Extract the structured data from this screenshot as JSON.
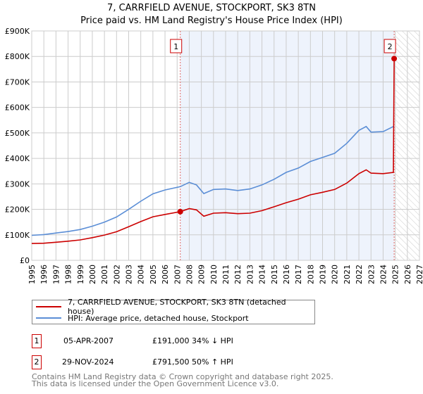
{
  "title": "7, CARRFIELD AVENUE, STOCKPORT, SK3 8TN",
  "subtitle": "Price paid vs. HM Land Registry's House Price Index (HPI)",
  "colors": {
    "property": "#cc0000",
    "hpi": "#5b8ed6",
    "shade": "#eef3fc"
  },
  "chart_data": {
    "type": "line",
    "title": "7, CARRFIELD AVENUE, STOCKPORT, SK3 8TN — Price paid vs. HPI",
    "xlim": [
      1995,
      2027
    ],
    "ylim": [
      0,
      900000
    ],
    "yticks": [
      0,
      100000,
      200000,
      300000,
      400000,
      500000,
      600000,
      700000,
      800000,
      900000
    ],
    "ytick_labels": [
      "£0",
      "£100K",
      "£200K",
      "£300K",
      "£400K",
      "£500K",
      "£600K",
      "£700K",
      "£800K",
      "£900K"
    ],
    "xticks": [
      "1995",
      "1996",
      "1997",
      "1998",
      "1999",
      "2000",
      "2001",
      "2002",
      "2003",
      "2004",
      "2005",
      "2006",
      "2007",
      "2008",
      "2009",
      "2010",
      "2011",
      "2012",
      "2013",
      "2014",
      "2015",
      "2016",
      "2017",
      "2018",
      "2019",
      "2020",
      "2021",
      "2022",
      "2023",
      "2024",
      "2025",
      "2026",
      "2027"
    ],
    "grid": true,
    "series": [
      {
        "name": "7, CARRFIELD AVENUE, STOCKPORT, SK3 8TN (detached house)",
        "color": "#cc0000",
        "x": [
          1995,
          1996,
          1997,
          1998,
          1999,
          2000,
          2001,
          2002,
          2003,
          2004,
          2005,
          2006,
          2007.26,
          2008,
          2008.6,
          2009.2,
          2010,
          2011,
          2012,
          2013,
          2014,
          2015,
          2016,
          2017,
          2018,
          2019,
          2020,
          2021,
          2022,
          2022.6,
          2023,
          2024,
          2024.85,
          2024.91
        ],
        "y": [
          66000,
          67000,
          71000,
          75000,
          80000,
          89000,
          99000,
          112000,
          132000,
          152000,
          171000,
          180000,
          191000,
          203000,
          198000,
          173000,
          185000,
          187000,
          183000,
          185000,
          195000,
          210000,
          226000,
          240000,
          257000,
          267000,
          278000,
          303000,
          340000,
          355000,
          342000,
          340000,
          345000,
          791500
        ]
      },
      {
        "name": "HPI: Average price, detached house, Stockport",
        "color": "#5b8ed6",
        "x": [
          1995,
          1996,
          1997,
          1998,
          1999,
          2000,
          2001,
          2002,
          2003,
          2004,
          2005,
          2006,
          2007.26,
          2008,
          2008.6,
          2009.2,
          2010,
          2011,
          2012,
          2013,
          2014,
          2015,
          2016,
          2017,
          2018,
          2019,
          2020,
          2021,
          2022,
          2022.6,
          2023,
          2024,
          2024.85
        ],
        "y": [
          98000,
          101000,
          107000,
          113000,
          121000,
          134000,
          150000,
          170000,
          200000,
          232000,
          261000,
          276000,
          289000,
          306000,
          296000,
          262000,
          278000,
          280000,
          274000,
          280000,
          296000,
          318000,
          345000,
          362000,
          388000,
          404000,
          420000,
          459000,
          510000,
          525000,
          503000,
          505000,
          525000
        ]
      }
    ],
    "sales": [
      {
        "label": "1",
        "x": 2007.26,
        "price": 191000
      },
      {
        "label": "2",
        "x": 2024.91,
        "price": 791500
      }
    ],
    "annotations": [
      "1",
      "2"
    ]
  },
  "legend": {
    "property": "7, CARRFIELD AVENUE, STOCKPORT, SK3 8TN (detached house)",
    "hpi": "HPI: Average price, detached house, Stockport"
  },
  "transactions": [
    {
      "num": "1",
      "date": "05-APR-2007",
      "price": "£191,000",
      "hpi": "34% ↓ HPI"
    },
    {
      "num": "2",
      "date": "29-NOV-2024",
      "price": "£791,500",
      "hpi": "50% ↑ HPI"
    }
  ],
  "footer": {
    "line1": "Contains HM Land Registry data © Crown copyright and database right 2025.",
    "line2": "This data is licensed under the Open Government Licence v3.0."
  }
}
